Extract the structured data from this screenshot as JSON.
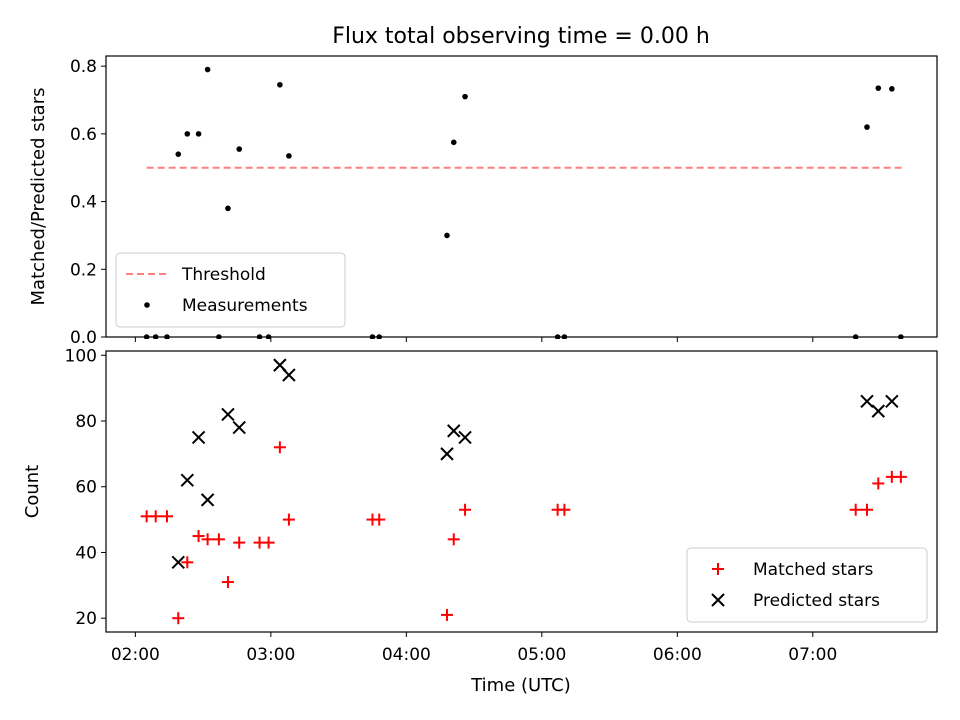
{
  "chart_data": {
    "title": "Flux total observing time = 0.00 h",
    "xlabel": "Time (UTC)",
    "x_ticks": [
      "02:00",
      "03:00",
      "04:00",
      "05:00",
      "06:00",
      "07:00"
    ],
    "x_range": [
      "01:47",
      "07:55"
    ],
    "panels": [
      {
        "id": "ratio",
        "type": "scatter",
        "ylabel": "Matched/Predicted stars",
        "ylim": [
          0,
          0.83
        ],
        "y_ticks": [
          "0.0",
          "0.2",
          "0.4",
          "0.6",
          "0.8"
        ],
        "legend_position": "lower-left",
        "threshold": {
          "name": "Threshold",
          "value": 0.5,
          "x_range": [
            "02:05",
            "07:40"
          ],
          "color": "#ff7f7f"
        },
        "series": [
          {
            "name": "Measurements",
            "color": "#000000",
            "marker": "dot",
            "points": [
              [
                "02:05",
                0.0
              ],
              [
                "02:09",
                0.0
              ],
              [
                "02:14",
                0.0
              ],
              [
                "02:19",
                0.54
              ],
              [
                "02:23",
                0.6
              ],
              [
                "02:28",
                0.6
              ],
              [
                "02:32",
                0.79
              ],
              [
                "02:37",
                0.0
              ],
              [
                "02:41",
                0.38
              ],
              [
                "02:46",
                0.555
              ],
              [
                "02:55",
                0.0
              ],
              [
                "02:59",
                0.0
              ],
              [
                "03:04",
                0.745
              ],
              [
                "03:08",
                0.535
              ],
              [
                "03:45",
                0.0
              ],
              [
                "03:48",
                0.0
              ],
              [
                "04:18",
                0.3
              ],
              [
                "04:21",
                0.575
              ],
              [
                "04:26",
                0.71
              ],
              [
                "05:07",
                0.0
              ],
              [
                "05:10",
                0.0
              ],
              [
                "07:19",
                0.0
              ],
              [
                "07:24",
                0.62
              ],
              [
                "07:29",
                0.735
              ],
              [
                "07:35",
                0.733
              ],
              [
                "07:39",
                0.0
              ]
            ]
          }
        ]
      },
      {
        "id": "count",
        "type": "scatter",
        "ylabel": "Count",
        "ylim": [
          15.8,
          101.3
        ],
        "y_ticks": [
          "20",
          "40",
          "60",
          "80",
          "100"
        ],
        "legend_position": "lower-right",
        "series": [
          {
            "name": "Matched stars",
            "color": "#ff0000",
            "marker": "plus",
            "points": [
              [
                "02:05",
                51
              ],
              [
                "02:09",
                51
              ],
              [
                "02:14",
                51
              ],
              [
                "02:19",
                20
              ],
              [
                "02:23",
                37
              ],
              [
                "02:28",
                45
              ],
              [
                "02:32",
                44
              ],
              [
                "02:37",
                44
              ],
              [
                "02:41",
                31
              ],
              [
                "02:46",
                43
              ],
              [
                "02:55",
                43
              ],
              [
                "02:59",
                43
              ],
              [
                "03:04",
                72
              ],
              [
                "03:08",
                50
              ],
              [
                "03:45",
                50
              ],
              [
                "03:48",
                50
              ],
              [
                "04:18",
                21
              ],
              [
                "04:21",
                44
              ],
              [
                "04:26",
                53
              ],
              [
                "05:07",
                53
              ],
              [
                "05:10",
                53
              ],
              [
                "07:19",
                53
              ],
              [
                "07:24",
                53
              ],
              [
                "07:29",
                61
              ],
              [
                "07:35",
                63
              ],
              [
                "07:39",
                63
              ]
            ]
          },
          {
            "name": "Predicted stars",
            "color": "#000000",
            "marker": "x",
            "points": [
              [
                "02:19",
                37
              ],
              [
                "02:23",
                62
              ],
              [
                "02:28",
                75
              ],
              [
                "02:32",
                56
              ],
              [
                "02:41",
                82
              ],
              [
                "02:46",
                78
              ],
              [
                "03:04",
                97
              ],
              [
                "03:08",
                94
              ],
              [
                "04:18",
                70
              ],
              [
                "04:21",
                77
              ],
              [
                "04:26",
                75
              ],
              [
                "07:24",
                86
              ],
              [
                "07:29",
                83
              ],
              [
                "07:35",
                86
              ]
            ]
          }
        ]
      }
    ]
  }
}
